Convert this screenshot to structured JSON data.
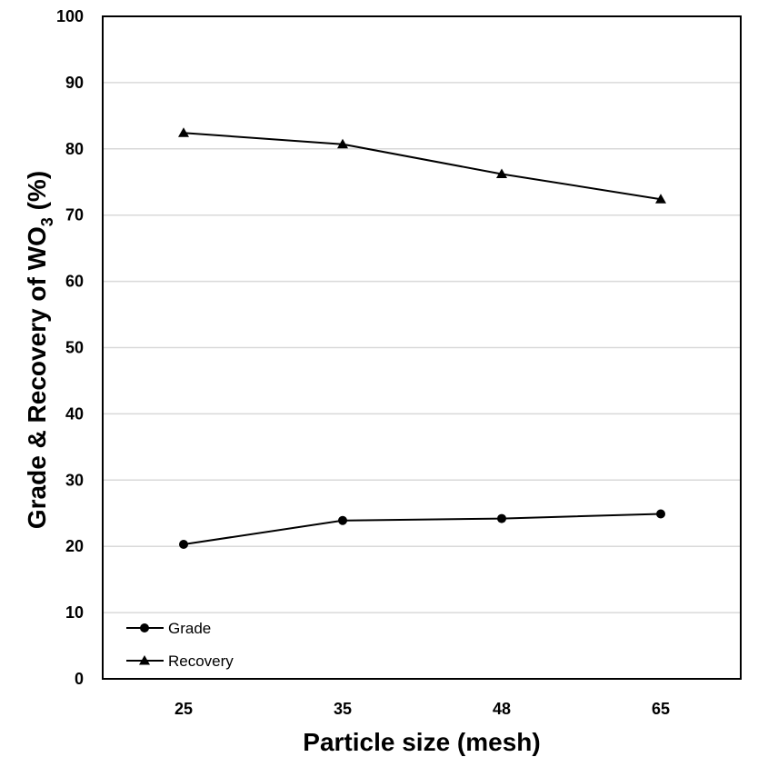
{
  "chart_data": {
    "type": "line",
    "title": "",
    "xlabel": "Particle size (mesh)",
    "ylabel": {
      "prefix": "Grade & Recovery of WO",
      "subscript": "3",
      "suffix": " (%)"
    },
    "categories": [
      "25",
      "35",
      "48",
      "65"
    ],
    "ylim": [
      0,
      100
    ],
    "yticks": [
      0,
      10,
      20,
      30,
      40,
      50,
      60,
      70,
      80,
      90,
      100
    ],
    "grid": true,
    "legend_position": "bottom-left",
    "series": [
      {
        "name": "Grade",
        "marker": "circle",
        "values": [
          20.3,
          23.9,
          24.2,
          24.9
        ]
      },
      {
        "name": "Recovery",
        "marker": "triangle",
        "values": [
          82.4,
          80.7,
          76.2,
          72.4
        ]
      }
    ]
  }
}
